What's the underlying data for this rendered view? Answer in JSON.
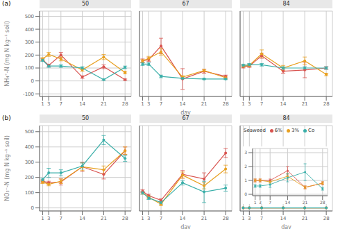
{
  "chart_data": [
    {
      "type": "line",
      "title": "50",
      "ylabel": "NH₄⁺-N (mg N kg⁻¹ soil)",
      "annotation": "(a)",
      "x": [
        1,
        3,
        7,
        14,
        21,
        28
      ],
      "xlim": [
        0,
        30
      ],
      "xticks": [
        1,
        3,
        7,
        14,
        21,
        28
      ],
      "ylim": [
        -120,
        540
      ],
      "yticks": [
        -100,
        0,
        100,
        200,
        300,
        400,
        500
      ],
      "grid": true,
      "series": [
        {
          "name": "6%",
          "color": "#d9534f",
          "values": [
            165,
            120,
            200,
            30,
            110,
            10
          ],
          "errors": [
            10,
            10,
            20,
            10,
            15,
            5
          ]
        },
        {
          "name": "3%",
          "color": "#e8a020",
          "values": [
            170,
            205,
            170,
            85,
            185,
            65
          ],
          "errors": [
            10,
            15,
            15,
            10,
            20,
            10
          ]
        },
        {
          "name": "Co",
          "color": "#3aafa9",
          "values": [
            160,
            115,
            115,
            100,
            10,
            105
          ],
          "errors": [
            10,
            10,
            10,
            10,
            5,
            10
          ]
        }
      ]
    },
    {
      "type": "line",
      "title": "67",
      "xlabel": "day",
      "tick_labels": "x",
      "x": [
        1,
        3,
        7,
        14,
        21,
        28
      ],
      "xlim": [
        0,
        30
      ],
      "xticks": [
        1,
        3,
        7,
        14,
        21,
        28
      ],
      "ylim": [
        -120,
        540
      ],
      "yticks": [
        -100,
        0,
        100,
        200,
        300,
        400,
        500
      ],
      "grid": true,
      "series": [
        {
          "name": "6%",
          "color": "#d9534f",
          "values": [
            155,
            165,
            270,
            15,
            75,
            35
          ],
          "errors": [
            15,
            15,
            60,
            80,
            15,
            10
          ]
        },
        {
          "name": "3%",
          "color": "#e8a020",
          "values": [
            155,
            175,
            225,
            30,
            80,
            25
          ],
          "errors": [
            10,
            15,
            25,
            10,
            10,
            10
          ]
        },
        {
          "name": "Co",
          "color": "#3aafa9",
          "values": [
            130,
            130,
            35,
            20,
            15,
            15
          ],
          "errors": [
            10,
            10,
            10,
            5,
            5,
            5
          ]
        }
      ]
    },
    {
      "type": "line",
      "title": "84",
      "tick_labels": "x",
      "x": [
        1,
        3,
        7,
        14,
        21,
        28
      ],
      "xlim": [
        0,
        30
      ],
      "xticks": [
        1,
        3,
        7,
        14,
        21,
        28
      ],
      "ylim": [
        -120,
        540
      ],
      "yticks": [
        -100,
        0,
        100,
        200,
        300,
        400,
        500
      ],
      "grid": true,
      "series": [
        {
          "name": "6%",
          "color": "#d9534f",
          "values": [
            110,
            115,
            195,
            75,
            85,
            100
          ],
          "errors": [
            10,
            10,
            20,
            15,
            60,
            10
          ]
        },
        {
          "name": "3%",
          "color": "#e8a020",
          "values": [
            115,
            120,
            210,
            100,
            155,
            50
          ],
          "errors": [
            10,
            10,
            30,
            20,
            30,
            10
          ]
        },
        {
          "name": "Co",
          "color": "#3aafa9",
          "values": [
            120,
            125,
            125,
            100,
            100,
            100
          ],
          "errors": [
            10,
            10,
            10,
            10,
            10,
            10
          ]
        }
      ]
    },
    {
      "type": "line",
      "title": "50",
      "ylabel": "NO₃⁻-N (mg N kg⁻¹ soil)",
      "annotation": "(b)",
      "x": [
        1,
        3,
        7,
        14,
        21,
        28
      ],
      "xlim": [
        0,
        30
      ],
      "xticks": [
        1,
        3,
        7,
        14,
        21,
        28
      ],
      "ylim": [
        -20,
        540
      ],
      "yticks": [
        0,
        100,
        200,
        300,
        400,
        500
      ],
      "grid": true,
      "series": [
        {
          "name": "6%",
          "color": "#d9534f",
          "values": [
            175,
            165,
            170,
            270,
            220,
            375
          ],
          "errors": [
            10,
            10,
            20,
            30,
            30,
            25
          ]
        },
        {
          "name": "3%",
          "color": "#e8a020",
          "values": [
            170,
            155,
            175,
            270,
            250,
            375
          ],
          "errors": [
            10,
            10,
            15,
            25,
            25,
            25
          ]
        },
        {
          "name": "Co",
          "color": "#3aafa9",
          "values": [
            185,
            230,
            230,
            275,
            445,
            325
          ],
          "errors": [
            10,
            30,
            20,
            20,
            30,
            20
          ]
        }
      ]
    },
    {
      "type": "line",
      "title": "67",
      "xlabel": "day",
      "tick_labels": "x",
      "x": [
        1,
        3,
        7,
        14,
        21,
        28
      ],
      "xlim": [
        0,
        30
      ],
      "xticks": [
        1,
        3,
        7,
        14,
        21,
        28
      ],
      "ylim": [
        -20,
        540
      ],
      "yticks": [
        0,
        100,
        200,
        300,
        400,
        500
      ],
      "grid": true,
      "series": [
        {
          "name": "6%",
          "color": "#d9534f",
          "values": [
            110,
            80,
            50,
            220,
            190,
            360
          ],
          "errors": [
            10,
            10,
            10,
            25,
            40,
            30
          ]
        },
        {
          "name": "3%",
          "color": "#e8a020",
          "values": [
            100,
            70,
            25,
            215,
            145,
            255
          ],
          "errors": [
            10,
            10,
            10,
            20,
            20,
            25
          ]
        },
        {
          "name": "Co",
          "color": "#3aafa9",
          "values": [
            100,
            65,
            35,
            165,
            105,
            130
          ],
          "errors": [
            10,
            10,
            10,
            15,
            70,
            20
          ]
        }
      ]
    },
    {
      "type": "line",
      "title": "84",
      "xlabel": "day",
      "tick_labels": "x",
      "legend": "upper left",
      "legend_title": "Seaweed",
      "x": [
        1,
        3,
        7,
        14,
        21,
        28
      ],
      "xlim": [
        0,
        30
      ],
      "xticks": [
        1,
        3,
        7,
        14,
        21,
        28
      ],
      "ylim": [
        -20,
        540
      ],
      "yticks": [
        0,
        100,
        200,
        300,
        400,
        500
      ],
      "grid": true,
      "series": [
        {
          "name": "6%",
          "color": "#d9534f",
          "values": [
            0,
            0,
            0,
            0,
            0,
            0
          ]
        },
        {
          "name": "3%",
          "color": "#e8a020",
          "values": [
            0,
            0,
            0,
            0,
            0,
            0
          ]
        },
        {
          "name": "Co",
          "color": "#3aafa9",
          "values": [
            0,
            0,
            0,
            0,
            0,
            0
          ]
        }
      ]
    },
    {
      "type": "line",
      "x": [
        1,
        3,
        7,
        14,
        21,
        28
      ],
      "xlim": [
        0,
        30
      ],
      "xticks": [
        1,
        3,
        7,
        14,
        21,
        28
      ],
      "ylim": [
        -0.1,
        3.3
      ],
      "yticks": [
        0,
        1,
        2,
        3
      ],
      "grid": true,
      "series": [
        {
          "name": "6%",
          "color": "#d9534f",
          "values": [
            1.0,
            1.0,
            1.0,
            1.7,
            0.5,
            0.8
          ],
          "errors": [
            0.1,
            0.1,
            0.1,
            0.3,
            0.1,
            0.1
          ]
        },
        {
          "name": "3%",
          "color": "#e8a020",
          "values": [
            1.0,
            1.0,
            0.9,
            1.3,
            0.5,
            0.8
          ],
          "errors": [
            0.1,
            0.1,
            0.1,
            0.2,
            0.1,
            0.1
          ]
        },
        {
          "name": "Co",
          "color": "#3aafa9",
          "values": [
            0.6,
            0.6,
            0.7,
            1.2,
            1.6,
            0.4
          ],
          "errors": [
            0.1,
            0.1,
            0.2,
            0.3,
            0.6,
            0.1
          ]
        }
      ]
    }
  ]
}
